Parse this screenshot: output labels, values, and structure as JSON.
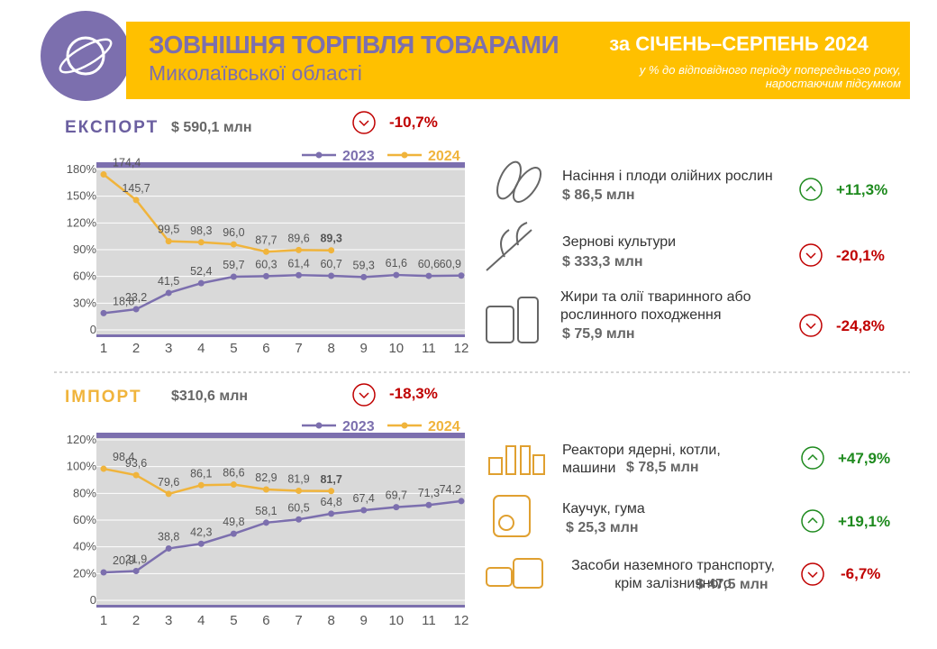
{
  "header": {
    "title": "ЗОВНІШНЯ ТОРГІВЛЯ ТОВАРАМИ",
    "subtitle": "Миколаївської області",
    "period": "за СІЧЕНЬ–СЕРПЕНЬ 2024",
    "note": [
      "у % до відповідного періоду попереднього року,",
      "наростаючим підсумком"
    ]
  },
  "chart_data": [
    {
      "type": "line",
      "title": "ЕКСПОРТ",
      "total": "$ 590,1 млн",
      "change": "-10,7%",
      "x": [
        1,
        2,
        3,
        4,
        5,
        6,
        7,
        8,
        9,
        10,
        11,
        12
      ],
      "xlim": [
        1,
        12
      ],
      "xticks": [
        1,
        2,
        3,
        4,
        5,
        6,
        7,
        8,
        9,
        10,
        11,
        12
      ],
      "ylim": [
        0,
        180
      ],
      "yticks": [
        0,
        {
          "value": 30,
          "label": "30%"
        },
        {
          "value": 60,
          "label": "60%"
        },
        {
          "value": 90,
          "label": "90%"
        },
        {
          "value": 120,
          "label": "120%"
        },
        {
          "value": 150,
          "label": "150%"
        },
        {
          "value": 180,
          "label": "180%"
        }
      ],
      "grid": true,
      "series": [
        {
          "name": "2023",
          "color": "#7c6fae",
          "values": [
            18.8,
            23.2,
            41.5,
            52.4,
            59.7,
            60.3,
            61.4,
            60.7,
            59.3,
            61.6,
            60.6,
            60.9
          ],
          "value_labels": [
            "18,8",
            "23,2",
            "41,5",
            "52,4",
            "59,7",
            "60,3",
            "61,4",
            "60,7",
            "59,3",
            "61,6",
            "60,6",
            "60,9"
          ]
        },
        {
          "name": "2024",
          "color": "#f0b43c",
          "values": [
            174.4,
            145.7,
            99.5,
            98.3,
            96.0,
            87.7,
            89.6,
            89.3,
            null,
            null,
            null,
            null
          ],
          "value_labels": [
            "174,4",
            "145,7",
            "99,5",
            "98,3",
            "96,0",
            "87,7",
            "89,6",
            "89,3",
            null,
            null,
            null,
            null
          ]
        }
      ]
    },
    {
      "type": "line",
      "title": "ІМПОРТ",
      "total": "$310,6 млн",
      "change": "-18,3%",
      "x": [
        1,
        2,
        3,
        4,
        5,
        6,
        7,
        8,
        9,
        10,
        11,
        12
      ],
      "xlim": [
        1,
        12
      ],
      "xticks": [
        1,
        2,
        3,
        4,
        5,
        6,
        7,
        8,
        9,
        10,
        11,
        12
      ],
      "ylim": [
        0,
        120
      ],
      "yticks": [
        0,
        {
          "value": 20,
          "label": "20%"
        },
        {
          "value": 40,
          "label": "40%"
        },
        {
          "value": 60,
          "label": "60%"
        },
        {
          "value": 80,
          "label": "80%"
        },
        {
          "value": 100,
          "label": "100%"
        },
        {
          "value": 120,
          "label": "120%"
        }
      ],
      "grid": true,
      "series": [
        {
          "name": "2023",
          "color": "#7c6fae",
          "values": [
            20.9,
            21.9,
            38.8,
            42.3,
            49.8,
            58.1,
            60.5,
            64.8,
            67.4,
            69.7,
            71.3,
            74.2
          ],
          "value_labels": [
            "20,9",
            "21,9",
            "38,8",
            "42,3",
            "49,8",
            "58,1",
            "60,5",
            "64,8",
            "67,4",
            "69,7",
            "71,3",
            "74,2"
          ]
        },
        {
          "name": "2024",
          "color": "#f0b43c",
          "values": [
            98.4,
            93.6,
            79.6,
            86.1,
            86.6,
            82.9,
            81.9,
            81.7,
            null,
            null,
            null,
            null
          ],
          "value_labels": [
            "98,4",
            "93,6",
            "79,6",
            "86,1",
            "86,6",
            "82,9",
            "81,9",
            "81,7",
            null,
            null,
            null,
            null
          ]
        }
      ]
    }
  ],
  "commodities": [
    [
      {
        "label": "Насіння і плоди олійних рослин",
        "value": "$ 86,5 млн",
        "change": "+11,3%"
      },
      {
        "label": "Зернові культури",
        "value": "$ 333,3 млн",
        "change": "-20,1%"
      },
      {
        "label": "Жири та олії тваринного або рослинного походження",
        "value": "$ 75,9 млн",
        "change": "-24,8%"
      }
    ],
    [
      {
        "label": "Реактори ядерні, котли, машини",
        "value": "$ 78,5 млн",
        "change": "+47,9%"
      },
      {
        "label": "Каучук, гума",
        "value": "$ 25,3 млн",
        "change": "+19,1%"
      },
      {
        "label": "Засоби наземного транспорту, крім залізничного",
        "value": "$ 47,5 млн",
        "change": "-6,7%"
      }
    ]
  ]
}
